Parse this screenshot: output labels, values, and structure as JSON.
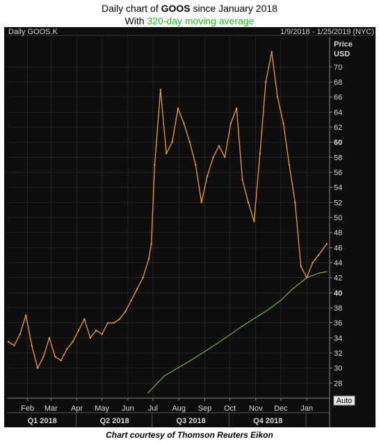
{
  "header": {
    "line1_prefix": "Daily chart of ",
    "line1_ticker": "GOOS",
    "line1_suffix": " since January 2018",
    "line2_prefix": "With ",
    "line2_accent": "320-day moving average"
  },
  "panel": {
    "instrument": "Daily GOOS.K",
    "range": "1/9/2018 - 1/25/2019 (NYC)",
    "axis_title_1": "Price",
    "axis_title_2": "USD",
    "auto_button": "Auto"
  },
  "footer": {
    "caption": "Chart courtesy of Thomson Reuters Eikon"
  },
  "colors": {
    "background": "#0d0d0d",
    "price": "#f0a030",
    "moving_average": "#7ddc1f",
    "grid": "#3a3a3a",
    "text": "#d8d8d8"
  },
  "chart_data": {
    "type": "line",
    "ylim": [
      26,
      74
    ],
    "yticks": [
      28,
      30,
      32,
      34,
      36,
      38,
      40,
      42,
      44,
      46,
      48,
      50,
      52,
      54,
      56,
      58,
      60,
      62,
      64,
      66,
      68,
      70
    ],
    "bold_ticks": [
      40,
      60
    ],
    "x_range": [
      "2018-01-09",
      "2019-01-25"
    ],
    "month_labels": [
      {
        "label": "Feb",
        "date": "2018-02-01"
      },
      {
        "label": "Mar",
        "date": "2018-03-01"
      },
      {
        "label": "Apr",
        "date": "2018-04-01"
      },
      {
        "label": "May",
        "date": "2018-05-01"
      },
      {
        "label": "Jun",
        "date": "2018-06-01"
      },
      {
        "label": "Jul",
        "date": "2018-07-01"
      },
      {
        "label": "Aug",
        "date": "2018-08-01"
      },
      {
        "label": "Sep",
        "date": "2018-09-01"
      },
      {
        "label": "Oct",
        "date": "2018-10-01"
      },
      {
        "label": "Nov",
        "date": "2018-11-01"
      },
      {
        "label": "Dec",
        "date": "2018-12-01"
      },
      {
        "label": "Jan",
        "date": "2019-01-01"
      }
    ],
    "quarter_labels": [
      {
        "label": "Q1 2018",
        "start": "2018-01-09",
        "end": "2018-03-31"
      },
      {
        "label": "Q2 2018",
        "start": "2018-04-01",
        "end": "2018-06-30"
      },
      {
        "label": "Q3 2018",
        "start": "2018-07-01",
        "end": "2018-09-30"
      },
      {
        "label": "Q4 2018",
        "start": "2018-10-01",
        "end": "2018-12-31"
      }
    ],
    "series": [
      {
        "key": "price",
        "dates": [
          "2018-01-09",
          "2018-01-16",
          "2018-01-23",
          "2018-01-30",
          "2018-02-06",
          "2018-02-13",
          "2018-02-20",
          "2018-02-27",
          "2018-03-06",
          "2018-03-13",
          "2018-03-20",
          "2018-03-27",
          "2018-04-03",
          "2018-04-10",
          "2018-04-17",
          "2018-04-24",
          "2018-05-01",
          "2018-05-08",
          "2018-05-15",
          "2018-05-22",
          "2018-05-29",
          "2018-06-05",
          "2018-06-12",
          "2018-06-19",
          "2018-06-26",
          "2018-06-29",
          "2018-07-03",
          "2018-07-10",
          "2018-07-17",
          "2018-07-24",
          "2018-07-31",
          "2018-08-07",
          "2018-08-14",
          "2018-08-21",
          "2018-08-28",
          "2018-09-04",
          "2018-09-11",
          "2018-09-18",
          "2018-09-25",
          "2018-10-02",
          "2018-10-09",
          "2018-10-16",
          "2018-10-23",
          "2018-10-30",
          "2018-11-06",
          "2018-11-13",
          "2018-11-20",
          "2018-11-27",
          "2018-12-04",
          "2018-12-11",
          "2018-12-18",
          "2018-12-25",
          "2019-01-01",
          "2019-01-08",
          "2019-01-15",
          "2019-01-25"
        ],
        "values": [
          33.5,
          33.0,
          34.5,
          37.0,
          33.0,
          30.0,
          31.5,
          34.0,
          31.5,
          31.0,
          32.5,
          33.5,
          35.0,
          36.5,
          34.0,
          35.0,
          34.5,
          36.0,
          36.0,
          36.5,
          37.5,
          39.0,
          40.5,
          42.0,
          44.5,
          46.5,
          57.0,
          67.0,
          58.5,
          60.0,
          64.5,
          62.5,
          60.0,
          57.0,
          52.0,
          55.5,
          58.0,
          59.5,
          58.0,
          62.5,
          64.5,
          55.0,
          52.0,
          49.5,
          58.5,
          68.0,
          72.0,
          66.0,
          62.5,
          57.0,
          52.0,
          43.5,
          42.0,
          44.0,
          45.0,
          46.5
        ]
      },
      {
        "key": "moving_average",
        "dates": [
          "2018-06-25",
          "2018-07-15",
          "2018-08-15",
          "2018-09-15",
          "2018-10-15",
          "2018-11-15",
          "2018-12-01",
          "2018-12-15",
          "2019-01-01",
          "2019-01-15",
          "2019-01-25"
        ],
        "values": [
          26.7,
          29.0,
          31.0,
          33.2,
          35.5,
          37.7,
          39.0,
          40.5,
          42.0,
          42.6,
          42.8
        ]
      }
    ]
  }
}
